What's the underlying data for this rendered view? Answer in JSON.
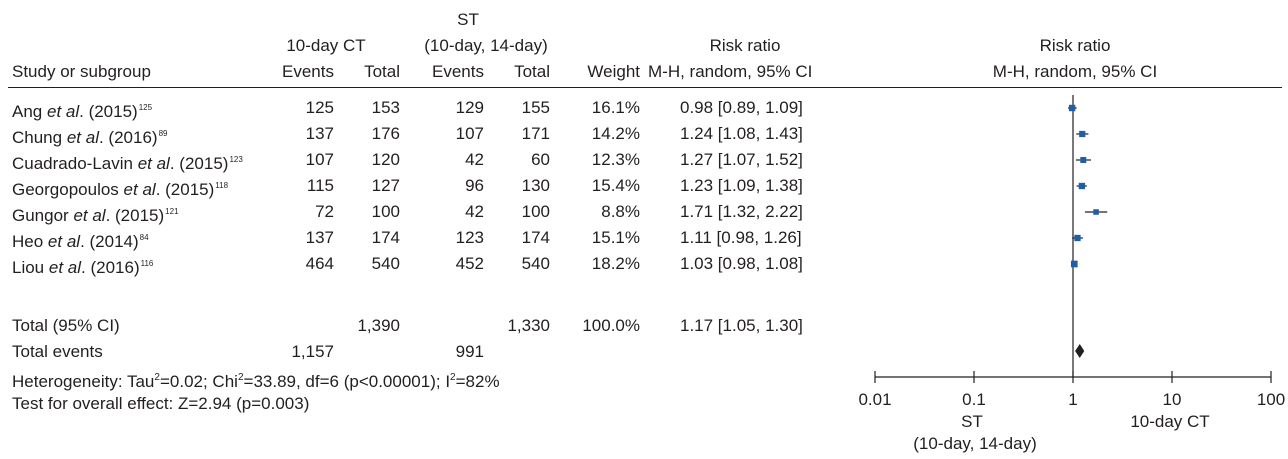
{
  "header": {
    "st_label": "ST",
    "ct_group": "10-day CT",
    "st_group": "(10-day, 14-day)",
    "risk_ratio": "Risk ratio",
    "risk_ratio_plot": "Risk ratio",
    "study": "Study or subgroup",
    "events_1": "Events",
    "total_1": "Total",
    "events_2": "Events",
    "total_2": "Total",
    "weight": "Weight",
    "method": "M-H, random, 95% CI",
    "method_plot": "M-H, random, 95% CI"
  },
  "rows": [
    {
      "name": "Ang",
      "etal": "et al",
      "year": ". (2015)",
      "ref": "125",
      "e1": "125",
      "t1": "153",
      "e2": "129",
      "t2": "155",
      "weight": "16.1%",
      "ci": "0.98 [0.89, 1.09]"
    },
    {
      "name": "Chung",
      "etal": "et al",
      "year": ". (2016)",
      "ref": "89",
      "e1": "137",
      "t1": "176",
      "e2": "107",
      "t2": "171",
      "weight": "14.2%",
      "ci": "1.24 [1.08, 1.43]"
    },
    {
      "name": "Cuadrado-Lavin",
      "etal": "et al",
      "year": ". (2015)",
      "ref": "123",
      "e1": "107",
      "t1": "120",
      "e2": "42",
      "t2": "60",
      "weight": "12.3%",
      "ci": "1.27 [1.07, 1.52]"
    },
    {
      "name": "Georgopoulos",
      "etal": "et al",
      "year": ". (2015)",
      "ref": "118",
      "e1": "115",
      "t1": "127",
      "e2": "96",
      "t2": "130",
      "weight": "15.4%",
      "ci": "1.23 [1.09, 1.38]"
    },
    {
      "name": "Gungor",
      "etal": "et al",
      "year": ". (2015)",
      "ref": "121",
      "e1": "72",
      "t1": "100",
      "e2": "42",
      "t2": "100",
      "weight": "8.8%",
      "ci": "1.71 [1.32, 2.22]"
    },
    {
      "name": "Heo",
      "etal": "et al",
      "year": ". (2014)",
      "ref": "84",
      "e1": "137",
      "t1": "174",
      "e2": "123",
      "t2": "174",
      "weight": "15.1%",
      "ci": "1.11 [0.98, 1.26]"
    },
    {
      "name": "Liou",
      "etal": "et al",
      "year": ". (2016)",
      "ref": "116",
      "e1": "464",
      "t1": "540",
      "e2": "452",
      "t2": "540",
      "weight": "18.2%",
      "ci": "1.03 [0.98, 1.08]"
    }
  ],
  "total": {
    "label": "Total (95% CI)",
    "t1": "1,390",
    "t2": "1,330",
    "weight": "100.0%",
    "ci": "1.17 [1.05, 1.30]",
    "events_label": "Total events",
    "e1": "1,157",
    "e2": "991"
  },
  "heterogeneity": {
    "p1": "Heterogeneity: Tau",
    "p2": "=0.02; Chi",
    "p3": "=33.89, df=6 (p<0.00001); I",
    "p4": "=82%",
    "sq": "2"
  },
  "overall_effect": "Test for overall effect: Z=2.94 (p=0.003)",
  "axis": {
    "favours_left_1": "ST",
    "favours_left_2": "(10-day, 14-day)",
    "favours_right": "10-day CT"
  },
  "chart_data": {
    "type": "forest",
    "scale": "log",
    "xlim": [
      0.01,
      100
    ],
    "ticks": [
      0.01,
      0.1,
      1,
      10,
      100
    ],
    "tick_labels": [
      "0.01",
      "0.1",
      "1",
      "10",
      "100"
    ],
    "null_line": 1,
    "studies": [
      {
        "rr": 0.98,
        "lo": 0.89,
        "hi": 1.09,
        "weight": 16.1
      },
      {
        "rr": 1.24,
        "lo": 1.08,
        "hi": 1.43,
        "weight": 14.2
      },
      {
        "rr": 1.27,
        "lo": 1.07,
        "hi": 1.52,
        "weight": 12.3
      },
      {
        "rr": 1.23,
        "lo": 1.09,
        "hi": 1.38,
        "weight": 15.4
      },
      {
        "rr": 1.71,
        "lo": 1.32,
        "hi": 2.22,
        "weight": 8.8
      },
      {
        "rr": 1.11,
        "lo": 0.98,
        "hi": 1.26,
        "weight": 15.1
      },
      {
        "rr": 1.03,
        "lo": 0.98,
        "hi": 1.08,
        "weight": 18.2
      }
    ],
    "pooled": {
      "rr": 1.17,
      "lo": 1.05,
      "hi": 1.3
    },
    "colors": {
      "square": "#1f5fa8",
      "line": "#231f20",
      "diamond": "#231f20"
    }
  }
}
